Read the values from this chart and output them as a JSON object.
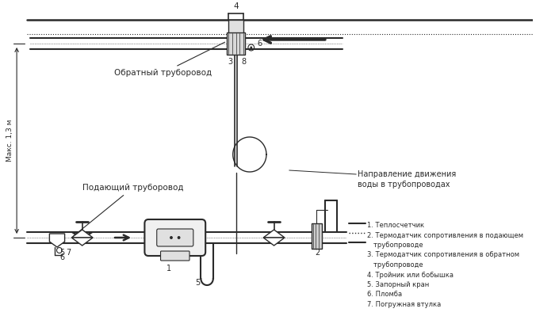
{
  "bg_color": "#ffffff",
  "line_color": "#2a2a2a",
  "label_obratny": "Обратный труборовод",
  "label_podayuschiy": "Подающий труборовод",
  "label_napravlenie": "Направление движения\nводы в трубопроводах",
  "label_maks": "Макс. 1,3 м",
  "legend_lines": [
    "1. Теплосчетчик",
    "2. Термодатчик сопротивления в подающем",
    "   трубопроводе",
    "3. Термодатчик сопротивления в обратном",
    "   трубопроводе",
    "4. Тройник или бобышка",
    "5. Запорный кран",
    "6. Пломба",
    "7. Погружная втулка"
  ]
}
